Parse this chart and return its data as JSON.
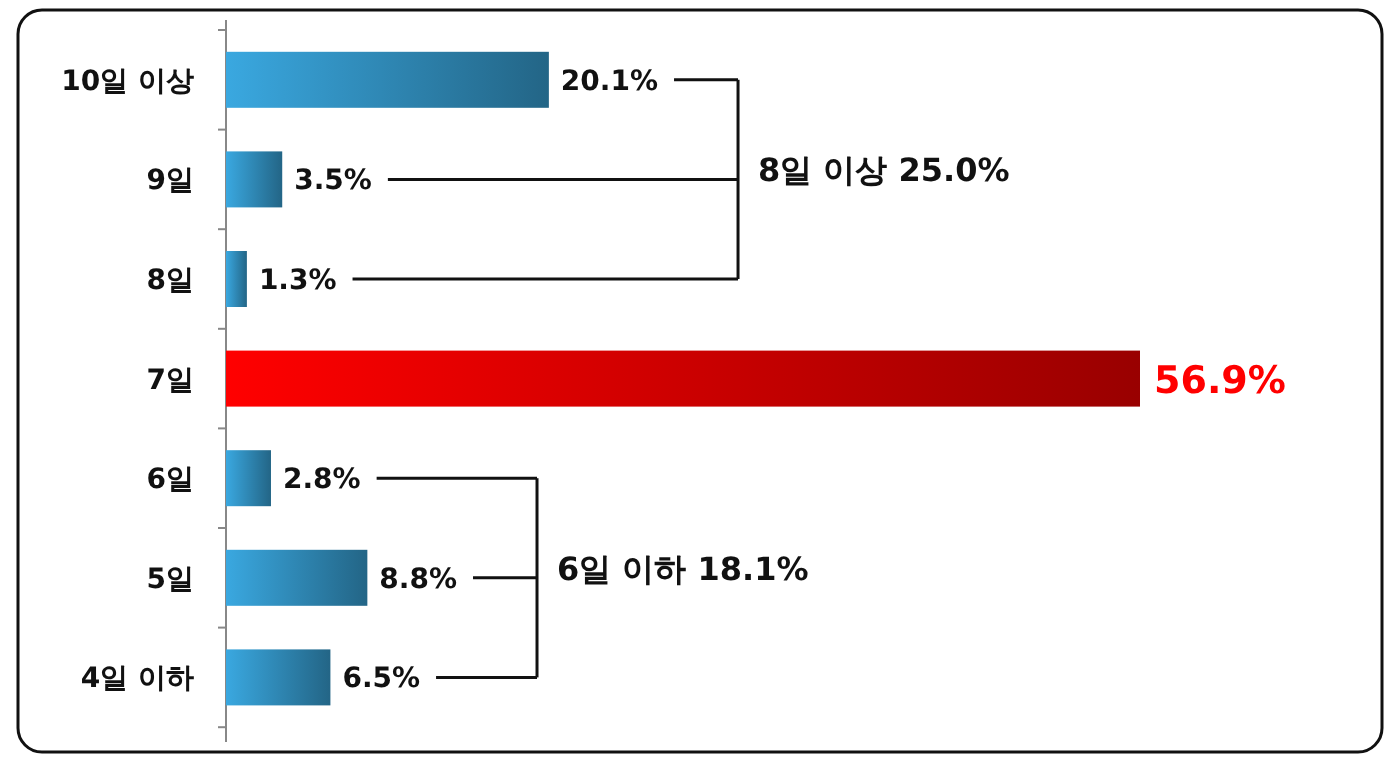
{
  "chart_data": {
    "type": "bar",
    "orientation": "horizontal",
    "categories": [
      "10일 이상",
      "9일",
      "8일",
      "7일",
      "6일",
      "5일",
      "4일 이하"
    ],
    "values": [
      20.1,
      3.5,
      1.3,
      56.9,
      2.8,
      8.8,
      6.5
    ],
    "value_labels": [
      "20.1%",
      "3.5%",
      "1.3%",
      "56.9%",
      "2.8%",
      "8.8%",
      "6.5%"
    ],
    "colors": [
      "#3aa8e0",
      "#3aa8e0",
      "#3aa8e0",
      "#ff0000",
      "#3aa8e0",
      "#3aa8e0",
      "#3aa8e0"
    ],
    "annotations": [
      "8일 이상 25.0%",
      "6일 이하 18.1%"
    ]
  }
}
